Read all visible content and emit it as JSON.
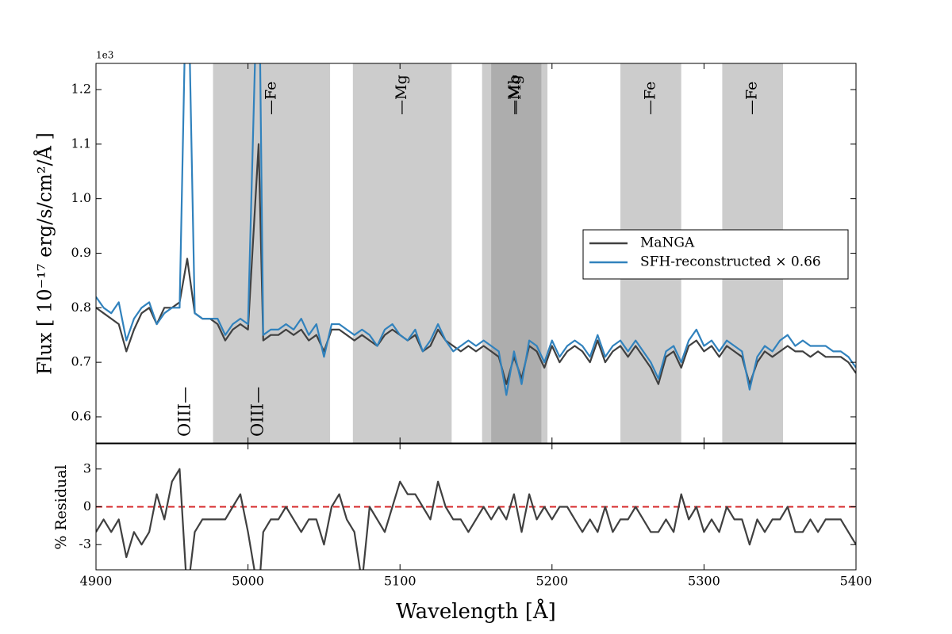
{
  "chart_data": [
    {
      "type": "line",
      "ylabel": "Flux [ 10⁻¹⁷ erg/s/cm²/Å ]",
      "y_offset_text": "1e3",
      "xlim": [
        4900,
        5400
      ],
      "ylim": [
        0.552,
        1.248
      ],
      "xticks": [
        4900,
        5000,
        5100,
        5200,
        5300,
        5400
      ],
      "yticks": [
        0.6,
        0.7,
        0.8,
        0.9,
        {
          "value": 1,
          "label": "1.0"
        },
        1.1,
        1.2
      ],
      "legend": "center right",
      "x": [
        4900,
        4905,
        4910,
        4915,
        4920,
        4925,
        4930,
        4935,
        4940,
        4945,
        4950,
        4955,
        4960,
        4965,
        4970,
        4975,
        4980,
        4985,
        4990,
        4995,
        5000,
        5007,
        5010,
        5015,
        5020,
        5025,
        5030,
        5035,
        5040,
        5045,
        5050,
        5055,
        5060,
        5065,
        5070,
        5075,
        5080,
        5085,
        5090,
        5095,
        5100,
        5105,
        5110,
        5115,
        5120,
        5125,
        5130,
        5135,
        5140,
        5145,
        5150,
        5155,
        5160,
        5165,
        5170,
        5175,
        5180,
        5185,
        5190,
        5195,
        5200,
        5205,
        5210,
        5215,
        5220,
        5225,
        5230,
        5235,
        5240,
        5245,
        5250,
        5255,
        5260,
        5265,
        5270,
        5275,
        5280,
        5285,
        5290,
        5295,
        5300,
        5305,
        5310,
        5315,
        5320,
        5325,
        5330,
        5335,
        5340,
        5345,
        5350,
        5355,
        5360,
        5365,
        5370,
        5375,
        5380,
        5385,
        5390,
        5395,
        5400
      ],
      "series": [
        {
          "name": "MaNGA",
          "color": "#404040",
          "values": [
            0.8,
            0.79,
            0.78,
            0.77,
            0.72,
            0.76,
            0.79,
            0.8,
            0.77,
            0.8,
            0.8,
            0.81,
            0.89,
            0.79,
            0.78,
            0.78,
            0.77,
            0.74,
            0.76,
            0.77,
            0.76,
            1.1,
            0.74,
            0.75,
            0.75,
            0.76,
            0.75,
            0.76,
            0.74,
            0.75,
            0.72,
            0.76,
            0.76,
            0.75,
            0.74,
            0.75,
            0.74,
            0.73,
            0.75,
            0.76,
            0.75,
            0.74,
            0.75,
            0.72,
            0.73,
            0.76,
            0.74,
            0.73,
            0.72,
            0.73,
            0.72,
            0.73,
            0.72,
            0.71,
            0.66,
            0.71,
            0.67,
            0.73,
            0.72,
            0.69,
            0.73,
            0.7,
            0.72,
            0.73,
            0.72,
            0.7,
            0.74,
            0.7,
            0.72,
            0.73,
            0.71,
            0.73,
            0.71,
            0.69,
            0.66,
            0.71,
            0.72,
            0.69,
            0.73,
            0.74,
            0.72,
            0.73,
            0.71,
            0.73,
            0.72,
            0.71,
            0.66,
            0.7,
            0.72,
            0.71,
            0.72,
            0.73,
            0.72,
            0.72,
            0.71,
            0.72,
            0.71,
            0.71,
            0.71,
            0.7,
            0.68
          ]
        },
        {
          "name": "SFH-reconstructed × 0.66",
          "color": "#3182bd",
          "values": [
            0.82,
            0.8,
            0.79,
            0.81,
            0.74,
            0.78,
            0.8,
            0.81,
            0.77,
            0.79,
            0.8,
            0.8,
            1.5,
            0.79,
            0.78,
            0.78,
            0.78,
            0.75,
            0.77,
            0.78,
            0.77,
            1.5,
            0.75,
            0.76,
            0.76,
            0.77,
            0.76,
            0.78,
            0.75,
            0.77,
            0.71,
            0.77,
            0.77,
            0.76,
            0.75,
            0.76,
            0.75,
            0.73,
            0.76,
            0.77,
            0.75,
            0.74,
            0.76,
            0.72,
            0.74,
            0.77,
            0.74,
            0.72,
            0.73,
            0.74,
            0.73,
            0.74,
            0.73,
            0.72,
            0.64,
            0.72,
            0.66,
            0.74,
            0.73,
            0.7,
            0.74,
            0.71,
            0.73,
            0.74,
            0.73,
            0.71,
            0.75,
            0.71,
            0.73,
            0.74,
            0.72,
            0.74,
            0.72,
            0.7,
            0.67,
            0.72,
            0.73,
            0.7,
            0.74,
            0.76,
            0.73,
            0.74,
            0.72,
            0.74,
            0.73,
            0.72,
            0.65,
            0.71,
            0.73,
            0.72,
            0.74,
            0.75,
            0.73,
            0.74,
            0.73,
            0.73,
            0.73,
            0.72,
            0.72,
            0.71,
            0.69
          ]
        }
      ],
      "band_color": "#808080",
      "band_alpha": 0.4,
      "bands": [
        {
          "start": 4977,
          "end": 5054,
          "label": "—Fe"
        },
        {
          "start": 5069,
          "end": 5134,
          "label": "—Mg"
        },
        {
          "start": 5154,
          "end": 5197,
          "label": "—Mb"
        },
        {
          "start": 5160,
          "end": 5193,
          "label": "—Mg"
        },
        {
          "start": 5245,
          "end": 5285,
          "label": "—Fe"
        },
        {
          "start": 5312,
          "end": 5352,
          "label": "—Fe"
        }
      ],
      "annotations": [
        {
          "x": 4959,
          "label": "OIII—"
        },
        {
          "x": 5007,
          "label": "OIII—"
        }
      ]
    },
    {
      "type": "line",
      "ylabel": "% Residual",
      "xlabel": "Wavelength [Å]",
      "xlim": [
        4900,
        5400
      ],
      "ylim": [
        -5,
        5
      ],
      "xticks": [
        4900,
        5000,
        5100,
        5200,
        5300,
        5400
      ],
      "yticks": [
        -3,
        0,
        3
      ],
      "x": [
        4900,
        4905,
        4910,
        4915,
        4920,
        4925,
        4930,
        4935,
        4940,
        4945,
        4950,
        4955,
        4960,
        4965,
        4970,
        4975,
        4980,
        4985,
        4990,
        4995,
        5000,
        5007,
        5010,
        5015,
        5020,
        5025,
        5030,
        5035,
        5040,
        5045,
        5050,
        5055,
        5060,
        5065,
        5070,
        5075,
        5080,
        5085,
        5090,
        5095,
        5100,
        5105,
        5110,
        5115,
        5120,
        5125,
        5130,
        5135,
        5140,
        5145,
        5150,
        5155,
        5160,
        5165,
        5170,
        5175,
        5180,
        5185,
        5190,
        5195,
        5200,
        5205,
        5210,
        5215,
        5220,
        5225,
        5230,
        5235,
        5240,
        5245,
        5250,
        5255,
        5260,
        5265,
        5270,
        5275,
        5280,
        5285,
        5290,
        5295,
        5300,
        5305,
        5310,
        5315,
        5320,
        5325,
        5330,
        5335,
        5340,
        5345,
        5350,
        5355,
        5360,
        5365,
        5370,
        5375,
        5380,
        5385,
        5390,
        5395,
        5400
      ],
      "series": [
        {
          "color": "#404040",
          "values": [
            -2,
            -1,
            -2,
            -1,
            -4,
            -2,
            -3,
            -2,
            1,
            -1,
            2,
            3,
            -7,
            -2,
            -1,
            -1,
            -1,
            -1,
            0,
            1,
            -2,
            -7,
            -2,
            -1,
            -1,
            0,
            -1,
            -2,
            -1,
            -1,
            -3,
            0,
            1,
            -1,
            -2,
            -6,
            0,
            -1,
            -2,
            0,
            2,
            1,
            1,
            0,
            -1,
            2,
            0,
            -1,
            -1,
            -2,
            -1,
            0,
            -1,
            0,
            -1,
            1,
            -2,
            1,
            -1,
            0,
            -1,
            0,
            0,
            -1,
            -2,
            -1,
            -2,
            0,
            -2,
            -1,
            -1,
            0,
            -1,
            -2,
            -2,
            -1,
            -2,
            1,
            -1,
            0,
            -2,
            -1,
            -2,
            0,
            -1,
            -1,
            -3,
            -1,
            -2,
            -1,
            -1,
            0,
            -2,
            -2,
            -1,
            -2,
            -1,
            -1,
            -1,
            -2,
            -3
          ]
        }
      ],
      "reference_line": {
        "value": 0,
        "color": "#d62728",
        "style": "dashed"
      }
    }
  ]
}
